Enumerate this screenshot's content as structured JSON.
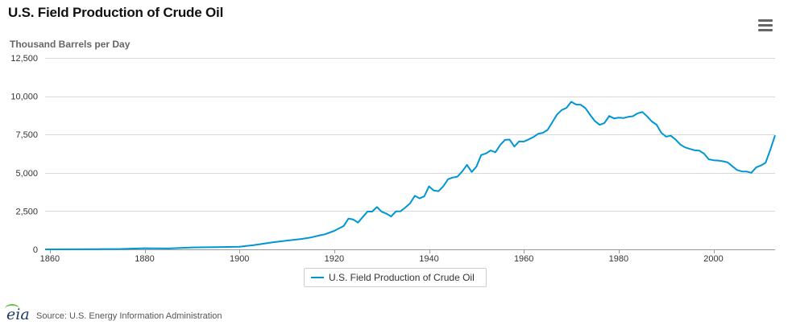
{
  "title": "U.S. Field Production of Crude Oil",
  "menu_icon": "hamburger-menu-icon",
  "source": {
    "logo": "eia",
    "text": "Source: U.S. Energy Information Administration"
  },
  "colors": {
    "series": "#0096d6",
    "grid": "#d8d8d8",
    "axis": "#666666"
  },
  "chart_data": {
    "type": "line",
    "title": "U.S. Field Production of Crude Oil",
    "ylabel": "Thousand Barrels per Day",
    "xlabel": "",
    "xlim": [
      1859,
      2013
    ],
    "ylim": [
      0,
      12500
    ],
    "yticks": [
      0,
      2500,
      5000,
      7500,
      10000,
      12500
    ],
    "ytick_labels": [
      "0",
      "2,500",
      "5,000",
      "7,500",
      "10,000",
      "12,500"
    ],
    "xticks": [
      1860,
      1880,
      1900,
      1920,
      1940,
      1960,
      1980,
      2000
    ],
    "xtick_labels": [
      "1860",
      "1880",
      "1900",
      "1920",
      "1940",
      "1960",
      "1980",
      "2000"
    ],
    "grid": true,
    "legend": "bottom-center",
    "series": [
      {
        "name": "U.S. Field Production of Crude Oil",
        "x": [
          1859,
          1860,
          1865,
          1870,
          1875,
          1880,
          1885,
          1890,
          1895,
          1900,
          1903,
          1905,
          1907,
          1910,
          1913,
          1915,
          1917,
          1918,
          1920,
          1922,
          1923,
          1924,
          1925,
          1926,
          1927,
          1928,
          1929,
          1930,
          1931,
          1932,
          1933,
          1934,
          1935,
          1936,
          1937,
          1938,
          1939,
          1940,
          1941,
          1942,
          1943,
          1944,
          1945,
          1946,
          1947,
          1948,
          1949,
          1950,
          1951,
          1952,
          1953,
          1954,
          1955,
          1956,
          1957,
          1958,
          1959,
          1960,
          1961,
          1962,
          1963,
          1964,
          1965,
          1966,
          1967,
          1968,
          1969,
          1970,
          1971,
          1972,
          1973,
          1974,
          1975,
          1976,
          1977,
          1978,
          1979,
          1980,
          1981,
          1982,
          1983,
          1984,
          1985,
          1986,
          1987,
          1988,
          1989,
          1990,
          1991,
          1992,
          1993,
          1994,
          1995,
          1996,
          1997,
          1998,
          1999,
          2000,
          2001,
          2002,
          2003,
          2004,
          2005,
          2006,
          2007,
          2008,
          2009,
          2010,
          2011,
          2012,
          2013
        ],
        "values": [
          0,
          1,
          7,
          15,
          24,
          72,
          60,
          125,
          145,
          175,
          275,
          370,
          455,
          575,
          680,
          770,
          920,
          980,
          1210,
          1530,
          2010,
          1950,
          1750,
          2110,
          2470,
          2470,
          2760,
          2460,
          2330,
          2150,
          2480,
          2490,
          2730,
          3010,
          3500,
          3330,
          3460,
          4110,
          3840,
          3800,
          4120,
          4580,
          4690,
          4750,
          5090,
          5520,
          5050,
          5410,
          6160,
          6260,
          6460,
          6340,
          6810,
          7150,
          7170,
          6710,
          7050,
          7040,
          7180,
          7330,
          7540,
          7610,
          7800,
          8300,
          8810,
          9100,
          9240,
          9640,
          9460,
          9440,
          9210,
          8770,
          8370,
          8130,
          8250,
          8710,
          8550,
          8600,
          8570,
          8650,
          8690,
          8880,
          8970,
          8680,
          8350,
          8140,
          7610,
          7360,
          7420,
          7170,
          6850,
          6660,
          6560,
          6470,
          6450,
          6250,
          5880,
          5820,
          5800,
          5750,
          5680,
          5420,
          5180,
          5090,
          5080,
          5000,
          5350,
          5480,
          5650,
          6500,
          7450
        ]
      }
    ]
  }
}
